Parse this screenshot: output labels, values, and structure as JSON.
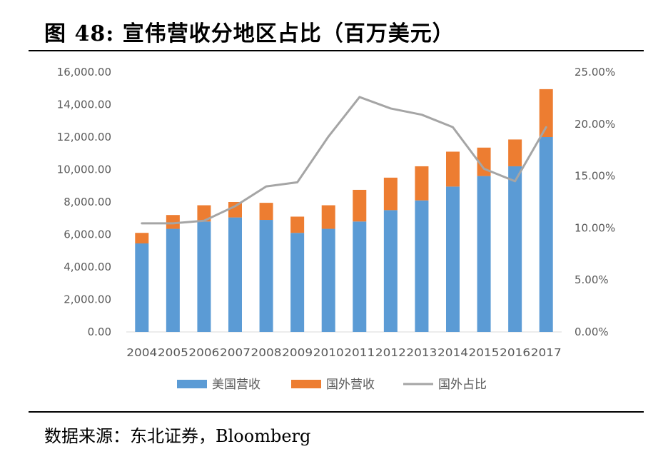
{
  "figure": {
    "title": "图  48:  宣伟营收分地区占比（百万美元）",
    "source": "数据来源：东北证券，Bloomberg"
  },
  "chart_data": {
    "type": "bar",
    "stacked": true,
    "categories": [
      "2004",
      "2005",
      "2006",
      "2007",
      "2008",
      "2009",
      "2010",
      "2011",
      "2012",
      "2013",
      "2014",
      "2015",
      "2016",
      "2017"
    ],
    "series": [
      {
        "name": "美国营收",
        "type": "bar",
        "axis": "left",
        "color": "#5b9bd5",
        "values": [
          5450,
          6350,
          6800,
          7050,
          6900,
          6100,
          6350,
          6800,
          7500,
          8100,
          8950,
          9600,
          10200,
          12000
        ]
      },
      {
        "name": "国外营收",
        "type": "bar",
        "axis": "left",
        "color": "#ed7d31",
        "values": [
          650,
          850,
          1000,
          950,
          1050,
          1000,
          1450,
          1950,
          2000,
          2100,
          2150,
          1750,
          1650,
          2950
        ]
      },
      {
        "name": "国外占比",
        "type": "line",
        "axis": "right",
        "color": "#a5a5a5",
        "values": [
          0.1045,
          0.1045,
          0.107,
          0.121,
          0.14,
          0.144,
          0.188,
          0.226,
          0.215,
          0.209,
          0.197,
          0.157,
          0.145,
          0.197
        ]
      }
    ],
    "yaxis_left": {
      "min": 0,
      "max": 16000,
      "step": 2000,
      "tick_labels": [
        "0.00",
        "2,000.00",
        "4,000.00",
        "6,000.00",
        "8,000.00",
        "10,000.00",
        "12,000.00",
        "14,000.00",
        "16,000.00"
      ]
    },
    "yaxis_right": {
      "min": 0,
      "max": 0.25,
      "step": 0.05,
      "tick_labels": [
        "0.00%",
        "5.00%",
        "10.00%",
        "15.00%",
        "20.00%",
        "25.00%"
      ]
    },
    "grid": false,
    "legend": {
      "position": "bottom"
    }
  }
}
